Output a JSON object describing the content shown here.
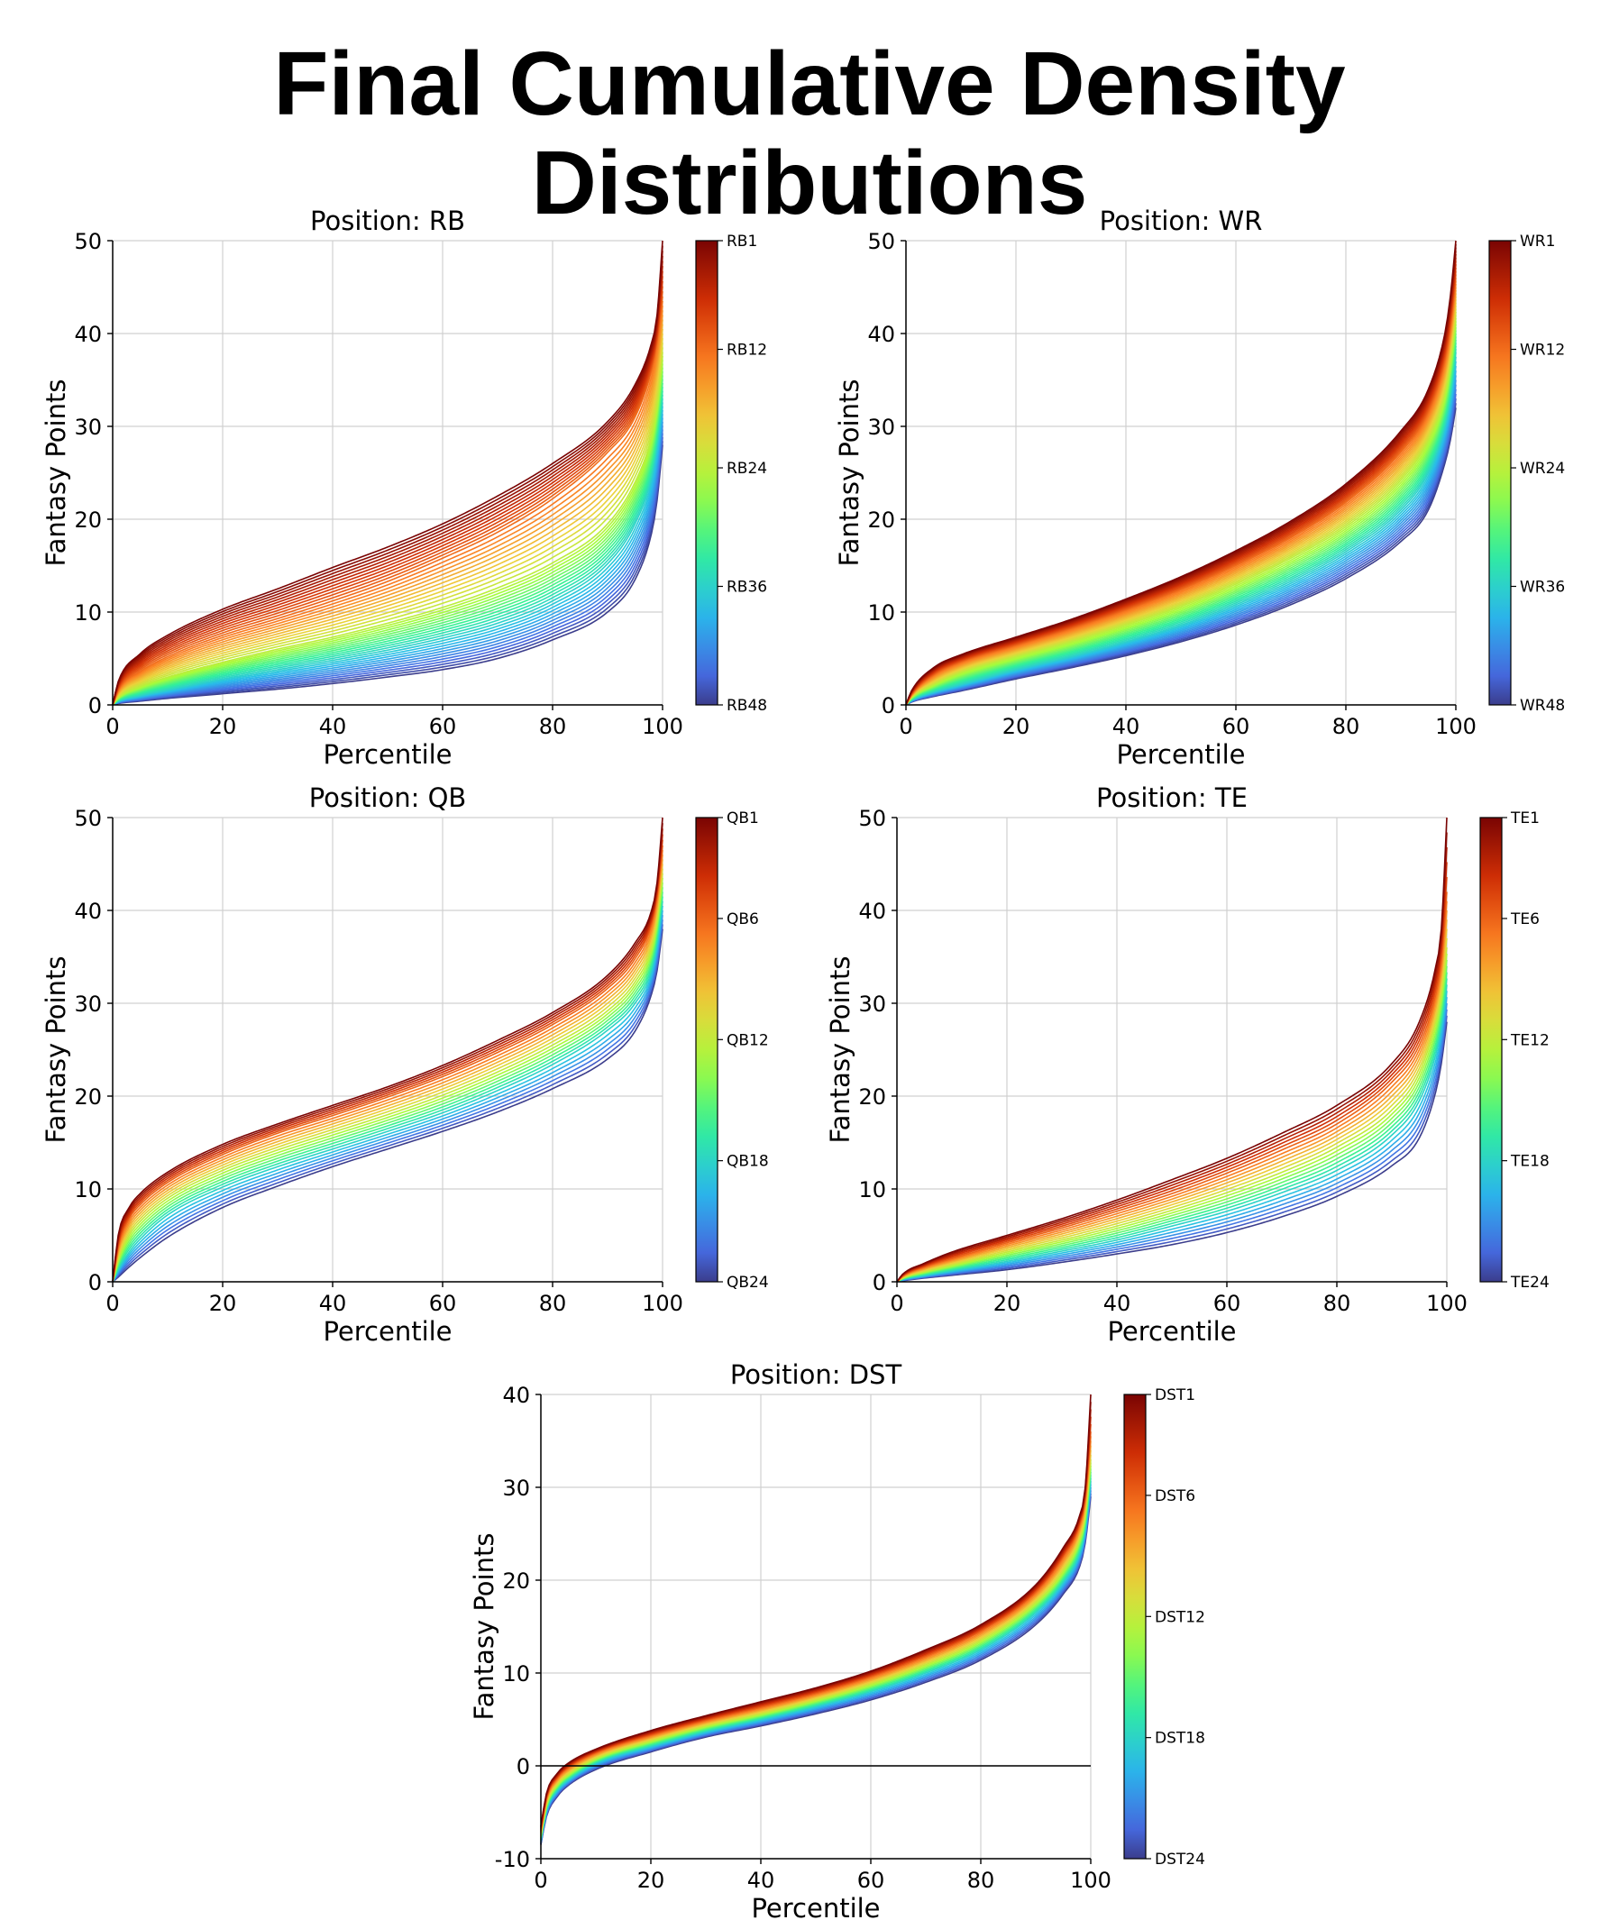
{
  "title": "Final Cumulative Density Distributions",
  "chart_data": [
    {
      "type": "line",
      "title": "Position: RB",
      "xlabel": "Percentile",
      "ylabel": "Fantasy Points",
      "xlim": [
        0,
        100
      ],
      "ylim": [
        0,
        50
      ],
      "xticks": [
        0,
        20,
        40,
        60,
        80,
        100
      ],
      "yticks": [
        0,
        10,
        20,
        30,
        40,
        50
      ],
      "grid": true,
      "colormap": "turbo",
      "n_series": 48,
      "colorbar": {
        "labels": [
          "RB1",
          "RB12",
          "RB24",
          "RB36",
          "RB48"
        ],
        "positions": [
          1,
          12,
          24,
          36,
          48
        ]
      },
      "x": [
        0,
        1,
        5,
        10,
        20,
        30,
        40,
        50,
        60,
        70,
        80,
        90,
        95,
        98,
        99,
        100
      ],
      "series": [
        {
          "name": "RB1",
          "values": [
            0,
            2.5,
            5.5,
            7.5,
            10.3,
            12.5,
            14.8,
            17.0,
            19.5,
            22.5,
            26.0,
            30.5,
            34.5,
            39.0,
            42.0,
            50.0
          ]
        },
        {
          "name": "RB12",
          "values": [
            0,
            1.6,
            3.6,
            5.2,
            7.5,
            9.3,
            11.2,
            13.3,
            15.8,
            18.6,
            22.2,
            27.2,
            31.0,
            36.0,
            39.0,
            44.0
          ]
        },
        {
          "name": "RB24",
          "values": [
            0,
            0.8,
            2.0,
            3.0,
            4.6,
            6.0,
            7.3,
            8.8,
            10.5,
            12.6,
            15.3,
            19.5,
            24.0,
            29.0,
            32.5,
            38.0
          ]
        },
        {
          "name": "RB36",
          "values": [
            0,
            0.4,
            1.0,
            1.6,
            2.8,
            3.8,
            4.8,
            5.9,
            7.2,
            8.8,
            11.2,
            15.2,
            19.5,
            24.5,
            28.0,
            33.0
          ]
        },
        {
          "name": "RB48",
          "values": [
            0,
            0.15,
            0.4,
            0.7,
            1.2,
            1.7,
            2.3,
            3.0,
            3.8,
            5.0,
            7.0,
            10.0,
            13.5,
            18.5,
            22.0,
            28.0
          ]
        }
      ]
    },
    {
      "type": "line",
      "title": "Position: WR",
      "xlabel": "Percentile",
      "ylabel": "Fantasy Points",
      "xlim": [
        0,
        100
      ],
      "ylim": [
        0,
        50
      ],
      "xticks": [
        0,
        20,
        40,
        60,
        80,
        100
      ],
      "yticks": [
        0,
        10,
        20,
        30,
        40,
        50
      ],
      "grid": true,
      "colormap": "turbo",
      "n_series": 48,
      "colorbar": {
        "labels": [
          "WR1",
          "WR12",
          "WR24",
          "WR36",
          "WR48"
        ],
        "positions": [
          1,
          12,
          24,
          36,
          48
        ]
      },
      "x": [
        0,
        1,
        5,
        10,
        20,
        30,
        40,
        50,
        60,
        70,
        80,
        90,
        95,
        98,
        99,
        100
      ],
      "series": [
        {
          "name": "WR1",
          "values": [
            0,
            1.5,
            4.0,
            5.4,
            7.3,
            9.2,
            11.4,
            13.8,
            16.6,
            19.8,
            23.8,
            29.5,
            34.0,
            40.0,
            44.0,
            50.0
          ]
        },
        {
          "name": "WR12",
          "values": [
            0,
            1.1,
            3.2,
            4.6,
            6.4,
            8.2,
            10.2,
            12.4,
            15.0,
            18.0,
            21.8,
            27.2,
            31.5,
            37.0,
            40.5,
            46.0
          ]
        },
        {
          "name": "WR24",
          "values": [
            0,
            0.8,
            2.2,
            3.5,
            5.2,
            6.8,
            8.6,
            10.6,
            13.0,
            15.8,
            19.2,
            24.2,
            28.5,
            33.5,
            37.0,
            42.0
          ]
        },
        {
          "name": "WR36",
          "values": [
            0,
            0.5,
            1.4,
            2.2,
            3.8,
            5.2,
            6.8,
            8.6,
            10.8,
            13.3,
            16.5,
            21.0,
            25.0,
            30.0,
            33.0,
            38.0
          ]
        },
        {
          "name": "WR48",
          "values": [
            0,
            0.3,
            0.9,
            1.5,
            2.8,
            4.0,
            5.3,
            6.8,
            8.6,
            10.8,
            13.6,
            17.6,
            21.0,
            26.0,
            28.5,
            32.0
          ]
        }
      ]
    },
    {
      "type": "line",
      "title": "Position: QB",
      "xlabel": "Percentile",
      "ylabel": "Fantasy Points",
      "xlim": [
        0,
        100
      ],
      "ylim": [
        0,
        50
      ],
      "xticks": [
        0,
        20,
        40,
        60,
        80,
        100
      ],
      "yticks": [
        0,
        10,
        20,
        30,
        40,
        50
      ],
      "grid": true,
      "colormap": "turbo",
      "n_series": 24,
      "colorbar": {
        "labels": [
          "QB1",
          "QB6",
          "QB12",
          "QB18",
          "QB24"
        ],
        "positions": [
          1,
          6,
          12,
          18,
          24
        ]
      },
      "x": [
        0,
        1,
        3,
        5,
        10,
        20,
        30,
        40,
        50,
        60,
        70,
        80,
        90,
        95,
        98,
        99,
        100
      ],
      "series": [
        {
          "name": "QB1",
          "values": [
            0,
            5.0,
            8.0,
            9.5,
            11.8,
            14.8,
            17.0,
            19.0,
            21.0,
            23.3,
            26.0,
            29.0,
            33.0,
            36.5,
            40.0,
            43.0,
            50.0
          ]
        },
        {
          "name": "QB6",
          "values": [
            0,
            3.8,
            6.8,
            8.3,
            10.7,
            13.7,
            16.0,
            17.9,
            19.9,
            22.1,
            24.7,
            27.7,
            31.6,
            34.8,
            38.5,
            41.5,
            47.0
          ]
        },
        {
          "name": "QB12",
          "values": [
            0,
            2.4,
            5.0,
            6.5,
            9.0,
            12.0,
            14.2,
            16.1,
            18.0,
            20.1,
            22.6,
            25.5,
            29.2,
            32.3,
            36.0,
            39.0,
            44.0
          ]
        },
        {
          "name": "QB18",
          "values": [
            0,
            1.3,
            3.2,
            4.6,
            7.2,
            10.2,
            12.4,
            14.3,
            16.2,
            18.2,
            20.6,
            23.4,
            27.1,
            30.0,
            33.5,
            36.5,
            41.0
          ]
        },
        {
          "name": "QB24",
          "values": [
            0,
            0.5,
            1.6,
            2.6,
            4.8,
            8.0,
            10.3,
            12.4,
            14.3,
            16.2,
            18.3,
            20.8,
            24.0,
            27.0,
            31.0,
            33.5,
            38.0
          ]
        }
      ]
    },
    {
      "type": "line",
      "title": "Position: TE",
      "xlabel": "Percentile",
      "ylabel": "Fantasy Points",
      "xlim": [
        0,
        100
      ],
      "ylim": [
        0,
        50
      ],
      "xticks": [
        0,
        20,
        40,
        60,
        80,
        100
      ],
      "yticks": [
        0,
        10,
        20,
        30,
        40,
        50
      ],
      "grid": true,
      "colormap": "turbo",
      "n_series": 24,
      "colorbar": {
        "labels": [
          "TE1",
          "TE6",
          "TE12",
          "TE18",
          "TE24"
        ],
        "positions": [
          1,
          6,
          12,
          18,
          24
        ]
      },
      "x": [
        0,
        1,
        5,
        10,
        20,
        30,
        40,
        50,
        60,
        70,
        80,
        90,
        95,
        98,
        99,
        100
      ],
      "series": [
        {
          "name": "TE1",
          "values": [
            0,
            0.8,
            2.0,
            3.2,
            5.0,
            6.8,
            8.8,
            11.0,
            13.3,
            16.0,
            19.0,
            23.5,
            28.0,
            34.0,
            38.0,
            50.0
          ]
        },
        {
          "name": "TE6",
          "values": [
            0,
            0.6,
            1.6,
            2.5,
            4.2,
            5.8,
            7.6,
            9.5,
            11.7,
            14.2,
            17.0,
            21.5,
            25.5,
            31.0,
            34.5,
            42.0
          ]
        },
        {
          "name": "TE12",
          "values": [
            0,
            0.4,
            1.1,
            1.8,
            3.2,
            4.5,
            6.0,
            7.7,
            9.6,
            11.8,
            14.5,
            18.5,
            22.5,
            28.0,
            31.0,
            36.0
          ]
        },
        {
          "name": "TE18",
          "values": [
            0,
            0.25,
            0.7,
            1.2,
            2.2,
            3.3,
            4.5,
            6.0,
            7.6,
            9.6,
            12.0,
            15.8,
            19.5,
            24.5,
            27.5,
            32.0
          ]
        },
        {
          "name": "TE24",
          "values": [
            0,
            0.1,
            0.4,
            0.7,
            1.3,
            2.1,
            3.0,
            4.0,
            5.3,
            7.0,
            9.2,
            12.5,
            15.5,
            20.5,
            23.5,
            28.0
          ]
        }
      ]
    },
    {
      "type": "line",
      "title": "Position: DST",
      "xlabel": "Percentile",
      "ylabel": "Fantasy Points",
      "xlim": [
        0,
        100
      ],
      "ylim": [
        -10,
        40
      ],
      "xticks": [
        0,
        20,
        40,
        60,
        80,
        100
      ],
      "yticks": [
        -10,
        0,
        10,
        20,
        30,
        40
      ],
      "grid": true,
      "hline": 0,
      "colormap": "turbo",
      "n_series": 24,
      "colorbar": {
        "labels": [
          "DST1",
          "DST6",
          "DST12",
          "DST18",
          "DST24"
        ],
        "positions": [
          1,
          6,
          12,
          18,
          24
        ]
      },
      "x": [
        0,
        1,
        3,
        5,
        10,
        20,
        30,
        40,
        50,
        60,
        70,
        80,
        90,
        95,
        98,
        99,
        100
      ],
      "series": [
        {
          "name": "DST1",
          "values": [
            -6.5,
            -3.0,
            -0.8,
            0.3,
            1.8,
            3.8,
            5.4,
            6.9,
            8.4,
            10.2,
            12.5,
            15.2,
            19.5,
            23.5,
            27.0,
            30.0,
            40.0
          ]
        },
        {
          "name": "DST6",
          "values": [
            -7.0,
            -3.5,
            -1.3,
            -0.2,
            1.4,
            3.3,
            4.9,
            6.3,
            7.8,
            9.6,
            11.8,
            14.5,
            18.7,
            22.5,
            26.0,
            28.8,
            36.0
          ]
        },
        {
          "name": "DST12",
          "values": [
            -7.5,
            -4.2,
            -2.0,
            -0.9,
            0.8,
            2.7,
            4.3,
            5.6,
            7.1,
            8.8,
            10.9,
            13.5,
            17.6,
            21.0,
            24.5,
            27.0,
            33.0
          ]
        },
        {
          "name": "DST18",
          "values": [
            -8.0,
            -4.8,
            -2.6,
            -1.5,
            0.3,
            2.1,
            3.7,
            5.0,
            6.4,
            8.0,
            10.0,
            12.5,
            16.5,
            19.8,
            23.0,
            25.5,
            31.0
          ]
        },
        {
          "name": "DST24",
          "values": [
            -8.5,
            -5.5,
            -3.3,
            -2.1,
            -0.4,
            1.5,
            3.1,
            4.3,
            5.6,
            7.1,
            9.0,
            11.4,
            15.2,
            18.5,
            21.5,
            24.0,
            29.0
          ]
        }
      ]
    }
  ]
}
